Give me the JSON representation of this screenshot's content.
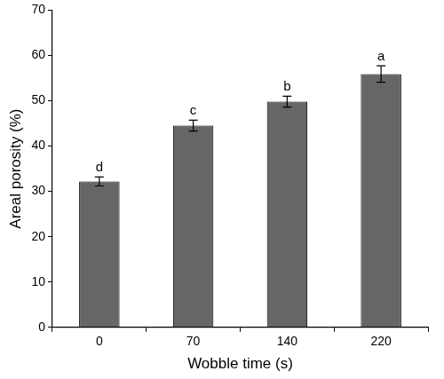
{
  "chart_data": {
    "type": "bar",
    "x_label": "Wobble time (s)",
    "y_label": "Areal porosity (%)",
    "categories": [
      "0",
      "70",
      "140",
      "220"
    ],
    "values": [
      32.2,
      44.5,
      49.8,
      55.9
    ],
    "errors": [
      1.0,
      1.2,
      1.2,
      1.8
    ],
    "annotations": [
      "d",
      "c",
      "b",
      "a"
    ],
    "color": "#666666",
    "ylim": [
      0,
      70
    ],
    "yticks": [
      0,
      10,
      20,
      30,
      40,
      50,
      60,
      70
    ],
    "grid": false
  }
}
